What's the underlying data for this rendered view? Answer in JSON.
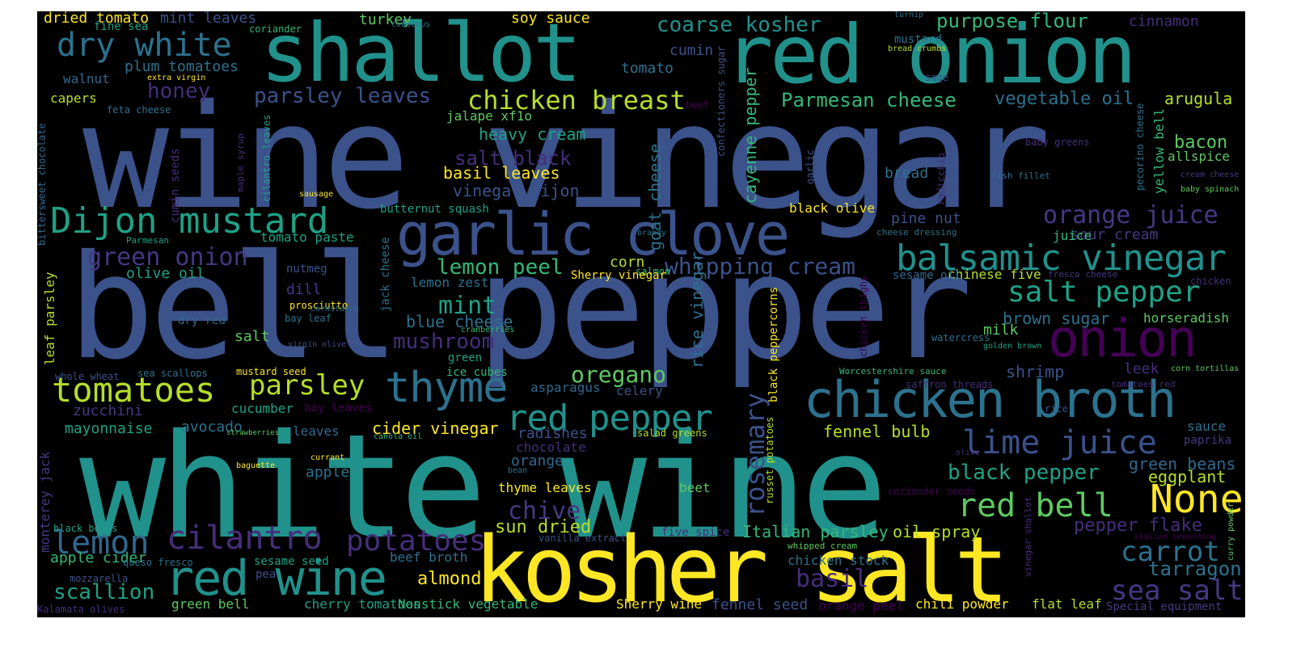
{
  "palette": {
    "background": "#000000",
    "page": "#ffffff",
    "c1": "#3b528b",
    "c2": "#21918c",
    "c3": "#5ec962",
    "c4": "#fde725",
    "c5": "#440154",
    "c6": "#2c728e",
    "c7": "#31688e",
    "c8": "#1fa187",
    "c9": "#b5de2b",
    "c10": "#472d7b",
    "c11": "#35b779",
    "c12": "#443983",
    "c13": "#90d743",
    "c14": "#26828e"
  },
  "words": [
    {
      "text": "wine vinegar",
      "color": "#3b528b"
    },
    {
      "text": "bell pepper",
      "color": "#3b528b"
    },
    {
      "text": "white wine",
      "color": "#21918c"
    },
    {
      "text": "kosher salt",
      "color": "#fde725"
    },
    {
      "text": "shallot",
      "color": "#21918c"
    },
    {
      "text": "red onion",
      "color": "#21918c"
    },
    {
      "text": "garlic clove",
      "color": "#3b528b"
    },
    {
      "text": "chicken broth",
      "color": "#2c728e"
    },
    {
      "text": "Dijon mustard",
      "color": "#1fa187"
    },
    {
      "text": "red wine",
      "color": "#21918c"
    },
    {
      "text": "onion",
      "color": "#440154"
    },
    {
      "text": "balsamic vinegar",
      "color": "#21918c"
    },
    {
      "text": "dry white",
      "color": "#2c728e"
    },
    {
      "text": "thyme",
      "color": "#2c728e"
    },
    {
      "text": "tomatoes",
      "color": "#b5de2b"
    },
    {
      "text": "lemon",
      "color": "#31688e"
    },
    {
      "text": "cilantro",
      "color": "#472d7b"
    },
    {
      "text": "salt pepper",
      "color": "#1fa187"
    },
    {
      "text": "red pepper",
      "color": "#21918c"
    },
    {
      "text": "lime juice",
      "color": "#3b528b"
    },
    {
      "text": "red bell",
      "color": "#5ec962"
    },
    {
      "text": "None",
      "color": "#fde725"
    },
    {
      "text": "chicken breast",
      "color": "#b5de2b"
    },
    {
      "text": "orange juice",
      "color": "#443983"
    },
    {
      "text": "parsley",
      "color": "#b5de2b"
    },
    {
      "text": "potatoes",
      "color": "#472d7b"
    },
    {
      "text": "green onion",
      "color": "#443983"
    },
    {
      "text": "carrot",
      "color": "#2c728e"
    },
    {
      "text": "sea salt",
      "color": "#443983"
    },
    {
      "text": "scallion",
      "color": "#1fa187"
    },
    {
      "text": "whipping cream",
      "color": "#3b528b"
    },
    {
      "text": "coarse kosher",
      "color": "#21918c"
    },
    {
      "text": "Parmesan cheese",
      "color": "#35b779"
    },
    {
      "text": "purpose flour",
      "color": "#35b779"
    },
    {
      "text": "oregano",
      "color": "#5ec962"
    },
    {
      "text": "mushroom",
      "color": "#472d7b"
    },
    {
      "text": "mint",
      "color": "#1fa187"
    },
    {
      "text": "lemon peel",
      "color": "#35b779"
    },
    {
      "text": "chive",
      "color": "#443983"
    },
    {
      "text": "basil",
      "color": "#472d7b"
    },
    {
      "text": "black pepper",
      "color": "#1fa187"
    },
    {
      "text": "honey",
      "color": "#472d7b"
    },
    {
      "text": "parsley leaves",
      "color": "#3b528b"
    },
    {
      "text": "vegetable oil",
      "color": "#2c728e"
    },
    {
      "text": "rosemary",
      "color": "#3b528b"
    },
    {
      "text": "almond",
      "color": "#fde725"
    },
    {
      "text": "tarragon",
      "color": "#2c728e"
    },
    {
      "text": "heavy cream",
      "color": "#1fa187"
    },
    {
      "text": "salt black",
      "color": "#472d7b"
    },
    {
      "text": "basil leaves",
      "color": "#fde725"
    },
    {
      "text": "vinegar Dijon",
      "color": "#3b528b"
    },
    {
      "text": "blue cheese",
      "color": "#2c728e"
    },
    {
      "text": "brown sugar",
      "color": "#2c728e"
    },
    {
      "text": "cider vinegar",
      "color": "#fde725"
    },
    {
      "text": "sun dried",
      "color": "#b5de2b"
    },
    {
      "text": "Italian parsley",
      "color": "#35b779"
    },
    {
      "text": "oil spray",
      "color": "#b5de2b"
    },
    {
      "text": "pepper flake",
      "color": "#472d7b"
    },
    {
      "text": "green beans",
      "color": "#31688e"
    },
    {
      "text": "eggplant",
      "color": "#b5de2b"
    },
    {
      "text": "fennel bulb",
      "color": "#b5de2b"
    },
    {
      "text": "shrimp",
      "color": "#3b528b"
    },
    {
      "text": "cayenne pepper",
      "color": "#35b779"
    },
    {
      "text": "goat cheese",
      "color": "#2c728e"
    },
    {
      "text": "rice vinegar",
      "color": "#2c728e"
    },
    {
      "text": "arugula",
      "color": "#b5de2b"
    },
    {
      "text": "bacon",
      "color": "#5ec962"
    },
    {
      "text": "allspice",
      "color": "#5ec962"
    },
    {
      "text": "yellow bell",
      "color": "#35b779"
    },
    {
      "text": "horseradish",
      "color": "#5ec962"
    },
    {
      "text": "sour cream",
      "color": "#443983"
    },
    {
      "text": "juice",
      "color": "#35b779"
    },
    {
      "text": "pine nut",
      "color": "#3b528b"
    },
    {
      "text": "black olive",
      "color": "#fde725"
    },
    {
      "text": "bread",
      "color": "#2c728e"
    },
    {
      "text": "chinese five",
      "color": "#b5de2b"
    },
    {
      "text": "sesame oil",
      "color": "#31688e"
    },
    {
      "text": "milk",
      "color": "#5ec962"
    },
    {
      "text": "leek",
      "color": "#472d7b"
    },
    {
      "text": "corn",
      "color": "#b5de2b"
    },
    {
      "text": "celery",
      "color": "#3b528b"
    },
    {
      "text": "asparagus",
      "color": "#31688e"
    },
    {
      "text": "radishes",
      "color": "#3b528b"
    },
    {
      "text": "chocolate",
      "color": "#472d7b"
    },
    {
      "text": "orange",
      "color": "#31688e"
    },
    {
      "text": "apple",
      "color": "#2c728e"
    },
    {
      "text": "thyme leaves",
      "color": "#fde725"
    },
    {
      "text": "beet",
      "color": "#5ec962"
    },
    {
      "text": "five spice",
      "color": "#472d7b"
    },
    {
      "text": "beef broth",
      "color": "#2c728e"
    },
    {
      "text": "chicken stock",
      "color": "#2c728e"
    },
    {
      "text": "fennel seed",
      "color": "#3b528b"
    },
    {
      "text": "orange peel",
      "color": "#440154"
    },
    {
      "text": "chili powder",
      "color": "#fde725"
    },
    {
      "text": "flat leaf",
      "color": "#b5de2b"
    },
    {
      "text": "Special equipment",
      "color": "#443983"
    },
    {
      "text": "Sherry wine",
      "color": "#fde725"
    },
    {
      "text": "cherry tomatoes",
      "color": "#1fa187"
    },
    {
      "text": "Nonstick vegetable",
      "color": "#35b779"
    },
    {
      "text": "green bell",
      "color": "#5ec962"
    },
    {
      "text": "apple cider",
      "color": "#35b779"
    },
    {
      "text": "mayonnaise",
      "color": "#1fa187"
    },
    {
      "text": "avocado",
      "color": "#2c728e"
    },
    {
      "text": "zucchini",
      "color": "#443983"
    },
    {
      "text": "cucumber",
      "color": "#1fa187"
    },
    {
      "text": "leaves",
      "color": "#31688e"
    },
    {
      "text": "olive oil",
      "color": "#1fa187"
    },
    {
      "text": "dill",
      "color": "#443983"
    },
    {
      "text": "salt",
      "color": "#5ec962"
    },
    {
      "text": "lemon zest",
      "color": "#2c728e"
    },
    {
      "text": "dried tomato",
      "color": "#fde725"
    },
    {
      "text": "mint leaves",
      "color": "#3b528b"
    },
    {
      "text": "turkey",
      "color": "#5ec962"
    },
    {
      "text": "soy sauce",
      "color": "#fde725"
    },
    {
      "text": "cinnamon",
      "color": "#472d7b"
    },
    {
      "text": "tomato",
      "color": "#2c728e"
    },
    {
      "text": "cumin",
      "color": "#3b528b"
    },
    {
      "text": "plum tomatoes",
      "color": "#2c728e"
    },
    {
      "text": "walnut",
      "color": "#31688e"
    },
    {
      "text": "capers",
      "color": "#b5de2b"
    },
    {
      "text": "fine sea",
      "color": "#1fa187"
    },
    {
      "text": "coriander",
      "color": "#35b779"
    },
    {
      "text": "jalape xf1o",
      "color": "#5ec962"
    },
    {
      "text": "tomato paste",
      "color": "#1fa187"
    },
    {
      "text": "nutmeg",
      "color": "#3b528b"
    },
    {
      "text": "prosciutto",
      "color": "#fde725"
    },
    {
      "text": "bay leaf",
      "color": "#2c728e"
    },
    {
      "text": "dry red",
      "color": "#31688e"
    },
    {
      "text": "leaf parsley",
      "color": "#b5de2b"
    },
    {
      "text": "mustard seed",
      "color": "#fde725"
    },
    {
      "text": "sea scallops",
      "color": "#2c728e"
    },
    {
      "text": "whole wheat",
      "color": "#3b528b"
    },
    {
      "text": "bay leaves",
      "color": "#440154"
    },
    {
      "text": "black beans",
      "color": "#1fa187"
    },
    {
      "text": "queso fresco",
      "color": "#2c728e"
    },
    {
      "text": "mozzarella",
      "color": "#3b528b"
    },
    {
      "text": "Kalamata olives",
      "color": "#472d7b"
    },
    {
      "text": "monterey jack",
      "color": "#443983"
    },
    {
      "text": "bittersweet chocolate",
      "color": "#31688e"
    },
    {
      "text": "Parmesan",
      "color": "#1fa187"
    },
    {
      "text": "cumin seeds",
      "color": "#472d7b"
    },
    {
      "text": "cilantro leaves",
      "color": "#1fa187"
    },
    {
      "text": "maple syrup",
      "color": "#472d7b"
    },
    {
      "text": "sausage",
      "color": "#fde725"
    },
    {
      "text": "feta cheese",
      "color": "#2c728e"
    },
    {
      "text": "extra virgin",
      "color": "#fde725"
    },
    {
      "text": "couscous",
      "color": "#2c728e"
    },
    {
      "text": "butternut squash",
      "color": "#1fa187"
    },
    {
      "text": "brandy",
      "color": "#2c728e"
    },
    {
      "text": "salmon",
      "color": "#35b779"
    },
    {
      "text": "Sherry vinegar",
      "color": "#fde725"
    },
    {
      "text": "jack cheese",
      "color": "#2c728e"
    },
    {
      "text": "cornstarch",
      "color": "#2c728e"
    },
    {
      "text": "virgin olive",
      "color": "#3b528b"
    },
    {
      "text": "cranberries",
      "color": "#35b779"
    },
    {
      "text": "green",
      "color": "#1fa187"
    },
    {
      "text": "ice cubes",
      "color": "#35b779"
    },
    {
      "text": "strawberries",
      "color": "#5ec962"
    },
    {
      "text": "canola oil",
      "color": "#35b779"
    },
    {
      "text": "currant",
      "color": "#fde725"
    },
    {
      "text": "baguette",
      "color": "#fde725"
    },
    {
      "text": "bean",
      "color": "#2c728e"
    },
    {
      "text": "sesame seed",
      "color": "#1fa187"
    },
    {
      "text": "pea",
      "color": "#3b528b"
    },
    {
      "text": "salad greens",
      "color": "#b5de2b"
    },
    {
      "text": "russet potatoes",
      "color": "#b5de2b"
    },
    {
      "text": "black peppercorns",
      "color": "#fde725"
    },
    {
      "text": "chicken thighs",
      "color": "#440154"
    },
    {
      "text": "watercress",
      "color": "#2c728e"
    },
    {
      "text": "confectioners sugar",
      "color": "#3b528b"
    },
    {
      "text": "beef",
      "color": "#440154"
    },
    {
      "text": "garlic",
      "color": "#3b528b"
    },
    {
      "text": "radicchio",
      "color": "#472d7b"
    },
    {
      "text": "turnip",
      "color": "#2c728e"
    },
    {
      "text": "mustard",
      "color": "#2c728e"
    },
    {
      "text": "bread crumbs",
      "color": "#b5de2b"
    },
    {
      "text": "sage",
      "color": "#3b528b"
    },
    {
      "text": "fish fillet",
      "color": "#2c728e"
    },
    {
      "text": "cheese dressing",
      "color": "#2c728e"
    },
    {
      "text": "fresco cheese",
      "color": "#443983"
    },
    {
      "text": "golden brown",
      "color": "#1fa187"
    },
    {
      "text": "Worcestershire sauce",
      "color": "#35b779"
    },
    {
      "text": "saffron threads",
      "color": "#472d7b"
    },
    {
      "text": "tomatoes red",
      "color": "#472d7b"
    },
    {
      "text": "corn tortillas",
      "color": "#5ec962"
    },
    {
      "text": "rice",
      "color": "#3b528b"
    },
    {
      "text": "olive",
      "color": "#472d7b"
    },
    {
      "text": "coriander seeds",
      "color": "#440154"
    },
    {
      "text": "vanilla extract",
      "color": "#3b528b"
    },
    {
      "text": "whipped cream",
      "color": "#5ec962"
    },
    {
      "text": "vinegar shallot",
      "color": "#472d7b"
    },
    {
      "text": "italian seasoning",
      "color": "#440154"
    },
    {
      "text": "baby greens",
      "color": "#472d7b"
    },
    {
      "text": "cream cheese",
      "color": "#443983"
    },
    {
      "text": "baby spinach",
      "color": "#5ec962"
    },
    {
      "text": "pecorino cheese",
      "color": "#2c728e"
    },
    {
      "text": "chicken",
      "color": "#472d7b"
    },
    {
      "text": "sauce",
      "color": "#2c728e"
    },
    {
      "text": "paprika",
      "color": "#443983"
    },
    {
      "text": "curry powder",
      "color": "#5ec962"
    }
  ]
}
